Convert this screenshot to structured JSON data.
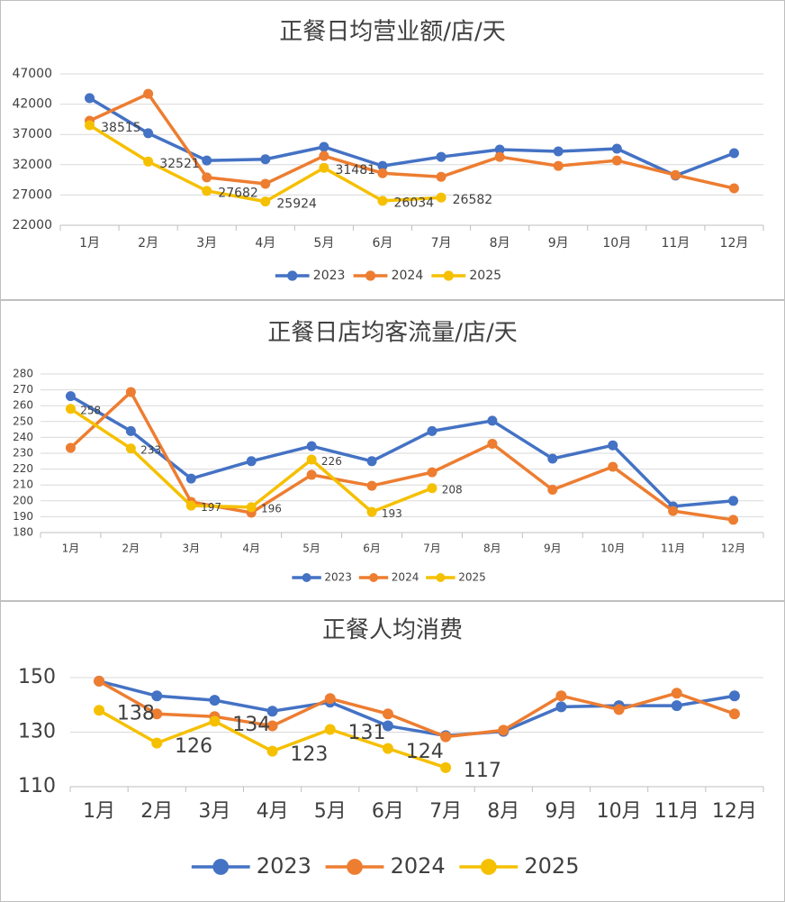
{
  "chart_data": [
    {
      "type": "line",
      "title": "正餐日均营业额/店/天",
      "categories": [
        "1月",
        "2月",
        "3月",
        "4月",
        "5月",
        "6月",
        "7月",
        "8月",
        "9月",
        "10月",
        "11月",
        "12月"
      ],
      "series": [
        {
          "name": "2023",
          "color": "#4472c4",
          "values": [
            43000,
            37200,
            32700,
            32900,
            34950,
            31800,
            33300,
            34500,
            34200,
            34650,
            30200,
            33900
          ]
        },
        {
          "name": "2024",
          "color": "#ed7d31",
          "values": [
            39260,
            43700,
            29900,
            28850,
            33450,
            30600,
            30000,
            33300,
            31800,
            32700,
            30300,
            28100
          ]
        },
        {
          "name": "2025",
          "color": "#f5c000",
          "values": [
            38515,
            32521,
            27682,
            25924,
            31481,
            26034,
            26582,
            null,
            null,
            null,
            null,
            null
          ],
          "data_labels": true
        }
      ],
      "ylim": [
        22000,
        47000
      ],
      "yticks": [
        22000,
        27000,
        32000,
        37000,
        42000,
        47000
      ],
      "grid": true,
      "legend": "bottom"
    },
    {
      "type": "line",
      "title": "正餐日店均客流量/店/天",
      "categories": [
        "1月",
        "2月",
        "3月",
        "4月",
        "5月",
        "6月",
        "7月",
        "8月",
        "9月",
        "10月",
        "11月",
        "12月"
      ],
      "series": [
        {
          "name": "2023",
          "color": "#4472c4",
          "values": [
            266,
            244,
            214,
            225,
            234.5,
            225,
            244,
            250.5,
            226.6,
            235,
            196.5,
            200
          ]
        },
        {
          "name": "2024",
          "color": "#ed7d31",
          "values": [
            233.4,
            268.6,
            199.3,
            192.5,
            216.4,
            209.5,
            218,
            236,
            207,
            221.5,
            193.6,
            188
          ]
        },
        {
          "name": "2025",
          "color": "#f5c000",
          "values": [
            258,
            233,
            197,
            196,
            226,
            193,
            208,
            null,
            null,
            null,
            null,
            null
          ],
          "data_labels": true
        }
      ],
      "ylim": [
        180,
        280
      ],
      "yticks": [
        180,
        190,
        200,
        210,
        220,
        230,
        240,
        250,
        260,
        270,
        280
      ],
      "grid": true,
      "legend": "bottom"
    },
    {
      "type": "line",
      "title": "正餐人均消费",
      "categories": [
        "1月",
        "2月",
        "3月",
        "4月",
        "5月",
        "6月",
        "7月",
        "8月",
        "9月",
        "10月",
        "11月",
        "12月"
      ],
      "series": [
        {
          "name": "2023",
          "color": "#4472c4",
          "values": [
            148.7,
            143.3,
            141.7,
            137.7,
            141,
            132.3,
            128.7,
            130.3,
            139.3,
            139.7,
            139.7,
            143.3
          ]
        },
        {
          "name": "2024",
          "color": "#ed7d31",
          "values": [
            148.7,
            136.7,
            135.7,
            132.3,
            142.3,
            136.7,
            128.3,
            130.7,
            143.3,
            138.3,
            144.3,
            136.7
          ]
        },
        {
          "name": "2025",
          "color": "#f5c000",
          "values": [
            138,
            126,
            134,
            123,
            131,
            124,
            117,
            null,
            null,
            null,
            null,
            null
          ],
          "data_labels": true
        }
      ],
      "ylim": [
        110,
        150
      ],
      "yticks": [
        110,
        130,
        150
      ],
      "grid": true,
      "legend": "bottom"
    }
  ]
}
